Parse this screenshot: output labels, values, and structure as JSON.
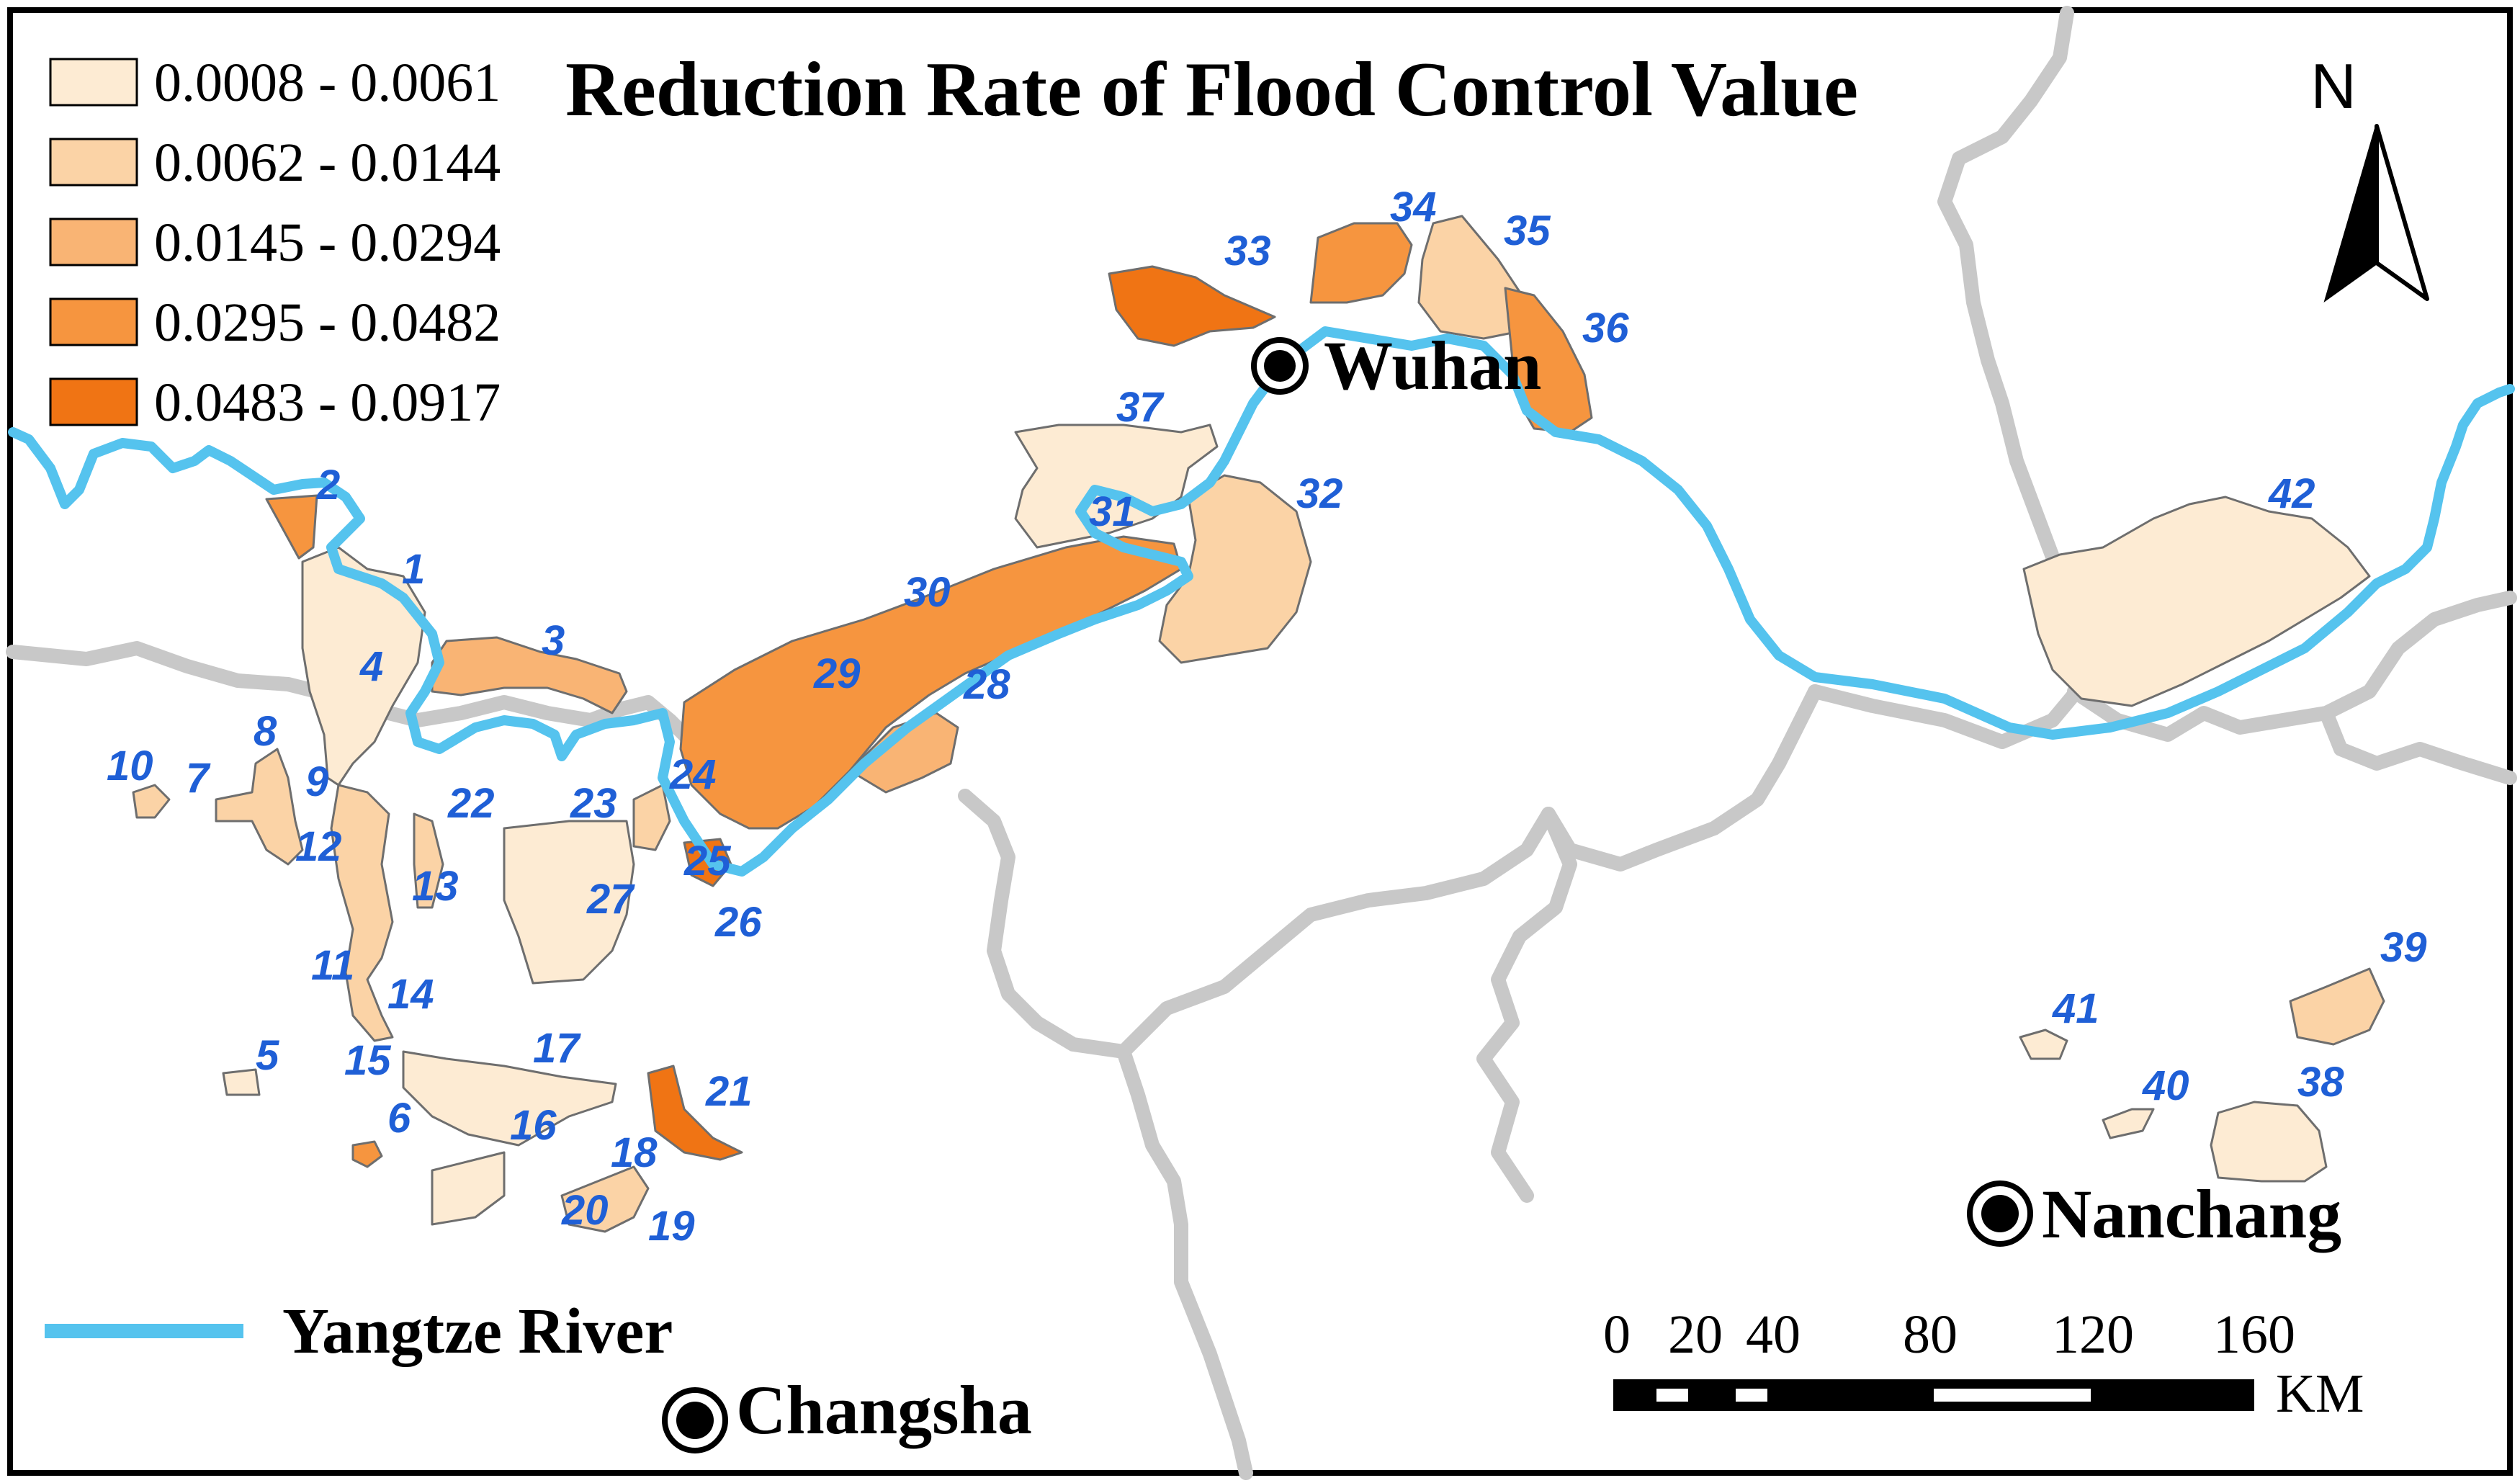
{
  "map": {
    "title": "Reduction Rate of Flood Control Value",
    "north_label": "N",
    "legend": [
      {
        "label": "0.0008 - 0.0061",
        "color": "#fdebd3"
      },
      {
        "label": "0.0062 - 0.0144",
        "color": "#fbd3a6"
      },
      {
        "label": "0.0145 - 0.0294",
        "color": "#f9b474"
      },
      {
        "label": "0.0295 - 0.0482",
        "color": "#f6953f"
      },
      {
        "label": "0.0483 - 0.0917",
        "color": "#f07414"
      }
    ],
    "river_legend": {
      "label": "Yangtze River",
      "color": "#55c3ee"
    },
    "boundary_color": "#c8c8c8",
    "cities": {
      "wuhan": "Wuhan",
      "nanchang": "Nanchang",
      "changsha": "Changsha"
    },
    "scale_bar": {
      "ticks": [
        "0",
        "20",
        "40",
        "80",
        "120",
        "160"
      ],
      "unit": "KM"
    },
    "lake_labels": [
      "1",
      "2",
      "3",
      "4",
      "5",
      "6",
      "7",
      "8",
      "9",
      "10",
      "11",
      "12",
      "13",
      "14",
      "15",
      "16",
      "17",
      "18",
      "19",
      "20",
      "21",
      "22",
      "23",
      "24",
      "25",
      "26",
      "27",
      "28",
      "29",
      "30",
      "31",
      "32",
      "33",
      "34",
      "35",
      "36",
      "37",
      "38",
      "39",
      "40",
      "41",
      "42"
    ]
  }
}
